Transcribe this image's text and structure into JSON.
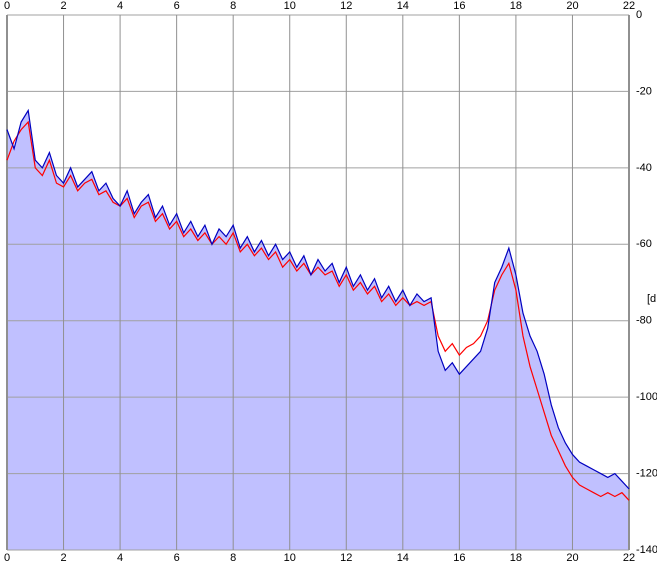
{
  "chart_data": {
    "type": "line",
    "y_label": "[dB",
    "x": [
      0,
      0.25,
      0.5,
      0.75,
      1,
      1.25,
      1.5,
      1.75,
      2,
      2.25,
      2.5,
      2.75,
      3,
      3.25,
      3.5,
      3.75,
      4,
      4.25,
      4.5,
      4.75,
      5,
      5.25,
      5.5,
      5.75,
      6,
      6.25,
      6.5,
      6.75,
      7,
      7.25,
      7.5,
      7.75,
      8,
      8.25,
      8.5,
      8.75,
      9,
      9.25,
      9.5,
      9.75,
      10,
      10.25,
      10.5,
      10.75,
      11,
      11.25,
      11.5,
      11.75,
      12,
      12.25,
      12.5,
      12.75,
      13,
      13.25,
      13.5,
      13.75,
      14,
      14.25,
      14.5,
      14.75,
      15,
      15.25,
      15.5,
      15.75,
      16,
      16.25,
      16.5,
      16.75,
      17,
      17.25,
      17.5,
      17.75,
      18,
      18.25,
      18.5,
      18.75,
      19,
      19.25,
      19.5,
      19.75,
      20,
      20.25,
      20.5,
      20.75,
      21,
      21.25,
      21.5,
      21.75,
      22
    ],
    "series": [
      {
        "color": "#ff0000",
        "values": [
          -38,
          -33,
          -30,
          -28,
          -40,
          -42,
          -38,
          -44,
          -45,
          -42,
          -46,
          -44,
          -43,
          -47,
          -46,
          -49,
          -50,
          -48,
          -53,
          -50,
          -49,
          -54,
          -52,
          -56,
          -54,
          -58,
          -56,
          -59,
          -57,
          -60,
          -58,
          -60,
          -57,
          -62,
          -60,
          -63,
          -61,
          -64,
          -62,
          -66,
          -64,
          -67,
          -65,
          -68,
          -66,
          -68,
          -67,
          -71,
          -68,
          -72,
          -70,
          -73,
          -71,
          -75,
          -73,
          -76,
          -74,
          -76,
          -75,
          -76,
          -75,
          -84,
          -88,
          -86,
          -89,
          -87,
          -86,
          -84,
          -80,
          -72,
          -68,
          -65,
          -72,
          -84,
          -92,
          -98,
          -104,
          -110,
          -114,
          -118,
          -121,
          -123,
          -124,
          -125,
          -126,
          -125,
          -126,
          -125,
          -127
        ]
      },
      {
        "color": "#0000c0",
        "fill": "#c0c0ff",
        "values": [
          -30,
          -35,
          -28,
          -25,
          -38,
          -40,
          -36,
          -42,
          -44,
          -40,
          -45,
          -43,
          -41,
          -46,
          -44,
          -48,
          -50,
          -46,
          -52,
          -49,
          -47,
          -53,
          -50,
          -55,
          -52,
          -57,
          -54,
          -58,
          -55,
          -60,
          -56,
          -58,
          -55,
          -61,
          -58,
          -62,
          -59,
          -63,
          -60,
          -64,
          -62,
          -66,
          -63,
          -68,
          -64,
          -67,
          -65,
          -70,
          -66,
          -71,
          -68,
          -72,
          -69,
          -74,
          -71,
          -75,
          -72,
          -76,
          -73,
          -75,
          -74,
          -88,
          -93,
          -91,
          -94,
          -92,
          -90,
          -88,
          -82,
          -70,
          -66,
          -61,
          -68,
          -78,
          -84,
          -88,
          -94,
          -102,
          -108,
          -112,
          -115,
          -117,
          -118,
          -119,
          -120,
          -121,
          -120,
          -122,
          -124
        ]
      }
    ],
    "xlim": [
      0,
      22
    ],
    "xticks": [
      0,
      2,
      4,
      6,
      8,
      10,
      12,
      14,
      16,
      18,
      20,
      22
    ],
    "ylim": [
      -140,
      0
    ],
    "yticks": [
      0,
      -20,
      -40,
      -60,
      -80,
      -100,
      -120,
      -140
    ],
    "grid": true
  }
}
